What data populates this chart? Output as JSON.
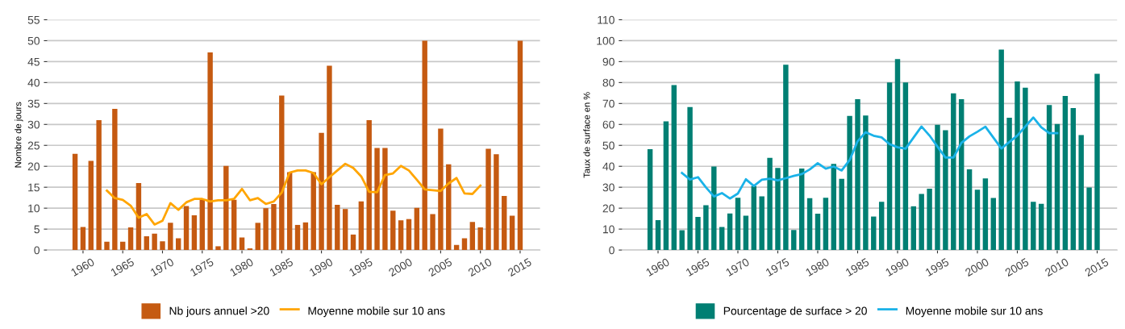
{
  "chart_data": [
    {
      "type": "bar",
      "ylabel": "Nombre de jours",
      "x": [
        1959,
        1960,
        1961,
        1962,
        1963,
        1964,
        1965,
        1966,
        1967,
        1968,
        1969,
        1970,
        1971,
        1972,
        1973,
        1974,
        1975,
        1976,
        1977,
        1978,
        1979,
        1980,
        1981,
        1982,
        1983,
        1984,
        1985,
        1986,
        1987,
        1988,
        1989,
        1990,
        1991,
        1992,
        1993,
        1994,
        1995,
        1996,
        1997,
        1998,
        1999,
        2000,
        2001,
        2002,
        2003,
        2004,
        2005,
        2006,
        2007,
        2008,
        2009,
        2010,
        2011,
        2012,
        2013,
        2014,
        2015
      ],
      "series": [
        {
          "name": "Nb jours annuel >20",
          "color": "#c55a11",
          "values": [
            23,
            5.5,
            21.3,
            31,
            2,
            33.7,
            2,
            5.4,
            16,
            3.3,
            3.9,
            2.1,
            6.5,
            2.8,
            10.5,
            8.3,
            12,
            47.2,
            0.9,
            20.1,
            12,
            3,
            0.4,
            6.5,
            10,
            11,
            36.9,
            18.6,
            6,
            6.6,
            18.6,
            28,
            44,
            10.8,
            9.8,
            3.7,
            11.6,
            31,
            24.4,
            24.4,
            9.4,
            7.1,
            7.4,
            10.1,
            50,
            8.6,
            29,
            20.5,
            1.2,
            2.8,
            6.7,
            5.4,
            24.2,
            22.9,
            12.9,
            8.2,
            50
          ]
        },
        {
          "name": "Moyenne mobile sur 10 ans",
          "type": "line",
          "color": "#ffa500",
          "x": [
            1963,
            1964,
            1965,
            1966,
            1967,
            1968,
            1969,
            1970,
            1971,
            1972,
            1973,
            1974,
            1975,
            1976,
            1977,
            1978,
            1979,
            1980,
            1981,
            1982,
            1983,
            1984,
            1985,
            1986,
            1987,
            1988,
            1989,
            1990,
            1991,
            1992,
            1993,
            1994,
            1995,
            1996,
            1997,
            1998,
            1999,
            2000,
            2001,
            2002,
            2003,
            2004,
            2005,
            2006,
            2007,
            2008,
            2009,
            2010
          ],
          "values": [
            14.2,
            12.4,
            12,
            10.6,
            7.7,
            8.6,
            6.1,
            7,
            11.2,
            9.6,
            11.4,
            12.2,
            12.2,
            11.6,
            11.9,
            11.9,
            12.2,
            14.6,
            11.9,
            12.4,
            11,
            11.6,
            13.7,
            18.5,
            19,
            19,
            18.4,
            15.7,
            17.4,
            19,
            20.6,
            19.6,
            17.6,
            13.9,
            13.8,
            17.9,
            18.3,
            20.1,
            19,
            16.8,
            14.5,
            14.3,
            14.1,
            15.9,
            17.2,
            13.5,
            13.4,
            15.4
          ]
        }
      ],
      "xlim": [
        1955.5,
        2017.5
      ],
      "xticks": [
        1960,
        1965,
        1970,
        1975,
        1980,
        1985,
        1990,
        1995,
        2000,
        2005,
        2010,
        2015
      ],
      "ylim": [
        0,
        55
      ],
      "yticks": [
        0,
        5,
        10,
        15,
        20,
        25,
        30,
        35,
        40,
        45,
        50,
        55
      ],
      "grid": "y",
      "legend": "bottom"
    },
    {
      "type": "bar",
      "ylabel": "Taux de surface en %",
      "x": [
        1959,
        1960,
        1961,
        1962,
        1963,
        1964,
        1965,
        1966,
        1967,
        1968,
        1969,
        1970,
        1971,
        1972,
        1973,
        1974,
        1975,
        1976,
        1977,
        1978,
        1979,
        1980,
        1981,
        1982,
        1983,
        1984,
        1985,
        1986,
        1987,
        1988,
        1989,
        1990,
        1991,
        1992,
        1993,
        1994,
        1995,
        1996,
        1997,
        1998,
        1999,
        2000,
        2001,
        2002,
        2003,
        2004,
        2005,
        2006,
        2007,
        2008,
        2009,
        2010,
        2011,
        2012,
        2013,
        2014,
        2015
      ],
      "series": [
        {
          "name": "Pourcentage de surface > 20",
          "color": "#007f73",
          "values": [
            48.2,
            14.3,
            61.5,
            78.8,
            9.5,
            68.3,
            15.8,
            21.4,
            39.9,
            11,
            17.5,
            25,
            16.4,
            30.6,
            25.6,
            44,
            39.2,
            88.5,
            9.6,
            38.9,
            24.8,
            17.4,
            25,
            41.1,
            34,
            64.1,
            72.1,
            64.3,
            16,
            23,
            80,
            91.2,
            80,
            20.9,
            26.8,
            29.3,
            59.8,
            57.2,
            74.8,
            72.1,
            38.5,
            28.8,
            34.2,
            24.9,
            95.7,
            63.2,
            80.5,
            77.5,
            23,
            22.1,
            69.3,
            60.2,
            73.6,
            67.8,
            54.9,
            29.9,
            84.2
          ]
        },
        {
          "name": "Moyenne mobile sur 10 ans",
          "type": "line",
          "color": "#1ab2e8",
          "x": [
            1963,
            1964,
            1965,
            1966,
            1967,
            1968,
            1969,
            1970,
            1971,
            1972,
            1973,
            1974,
            1975,
            1976,
            1977,
            1978,
            1979,
            1980,
            1981,
            1982,
            1983,
            1984,
            1985,
            1986,
            1987,
            1988,
            1989,
            1990,
            1991,
            1992,
            1993,
            1994,
            1995,
            1996,
            1997,
            1998,
            1999,
            2000,
            2001,
            2002,
            2003,
            2004,
            2005,
            2006,
            2007,
            2008,
            2009,
            2010
          ],
          "values": [
            36.8,
            33.7,
            34.8,
            29.9,
            25.6,
            27.2,
            24.6,
            27,
            33.8,
            30.6,
            33.6,
            34.1,
            33.3,
            34.3,
            35.4,
            36.3,
            38.5,
            41.5,
            38.9,
            39.9,
            38,
            43,
            52,
            56.3,
            54.6,
            53.8,
            50.6,
            49.1,
            48.4,
            53.7,
            59,
            54.7,
            49.4,
            44.2,
            44.2,
            51.2,
            54.3,
            56.5,
            58.9,
            53.7,
            48.5,
            51.6,
            54.7,
            59,
            63.3,
            58.6,
            55.8,
            55.8
          ]
        }
      ],
      "xlim": [
        1955.5,
        2017.5
      ],
      "xticks": [
        1960,
        1965,
        1970,
        1975,
        1980,
        1985,
        1990,
        1995,
        2000,
        2005,
        2010,
        2015
      ],
      "ylim": [
        0,
        110
      ],
      "yticks": [
        0,
        10,
        20,
        30,
        40,
        50,
        60,
        70,
        80,
        90,
        100,
        110
      ],
      "grid": "y",
      "legend": "bottom"
    }
  ]
}
